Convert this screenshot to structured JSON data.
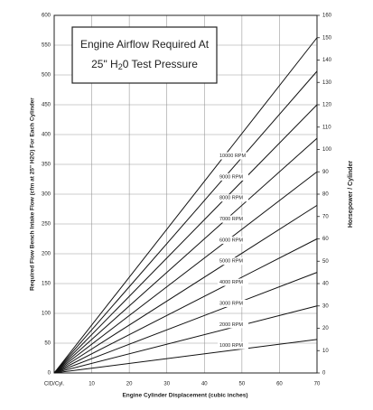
{
  "chart_data": {
    "type": "line",
    "title": "Engine Airflow Required At",
    "subtitle_parts": [
      "25\" H",
      "2",
      "0 Test Pressure"
    ],
    "xlabel": "Engine Cylinder Displacement (cubic inches)",
    "ylabel": "Required Flow Bench Intake Flow (cfm at 25\" H2O) For Each Cylinder",
    "y2label": "Horsepower / Cylinder",
    "x": [
      0,
      70
    ],
    "xlim": [
      0,
      70
    ],
    "xticks": [
      {
        "value": 0,
        "label": "CID/Cyl."
      },
      10,
      20,
      30,
      40,
      50,
      60,
      70
    ],
    "ylim": [
      0,
      600
    ],
    "yticks": [
      0,
      50,
      100,
      150,
      200,
      250,
      300,
      350,
      400,
      450,
      500,
      550,
      600
    ],
    "y2lim": [
      0,
      160
    ],
    "y2ticks": [
      0,
      10,
      20,
      30,
      40,
      50,
      60,
      70,
      80,
      90,
      100,
      110,
      120,
      130,
      140,
      150,
      160
    ],
    "grid": true,
    "series": [
      {
        "name": "1000 RPM",
        "color": "#111111",
        "axis": "y2",
        "values": [
          0,
          15
        ]
      },
      {
        "name": "2000 RPM",
        "color": "#111111",
        "axis": "y2",
        "values": [
          0,
          30
        ]
      },
      {
        "name": "3000 RPM",
        "color": "#111111",
        "axis": "y2",
        "values": [
          0,
          45
        ]
      },
      {
        "name": "4000 RPM",
        "color": "#111111",
        "axis": "y2",
        "values": [
          0,
          60
        ]
      },
      {
        "name": "5000 RPM",
        "color": "#111111",
        "axis": "y2",
        "values": [
          0,
          75
        ]
      },
      {
        "name": "6000 RPM",
        "color": "#111111",
        "axis": "y2",
        "values": [
          0,
          90
        ]
      },
      {
        "name": "7000 RPM",
        "color": "#111111",
        "axis": "y2",
        "values": [
          0,
          105
        ]
      },
      {
        "name": "8000 RPM",
        "color": "#111111",
        "axis": "y2",
        "values": [
          0,
          120
        ]
      },
      {
        "name": "9000 RPM",
        "color": "#111111",
        "axis": "y2",
        "values": [
          0,
          135
        ]
      },
      {
        "name": "10000 RPM",
        "color": "#111111",
        "axis": "y2",
        "values": [
          0,
          150
        ]
      }
    ]
  }
}
